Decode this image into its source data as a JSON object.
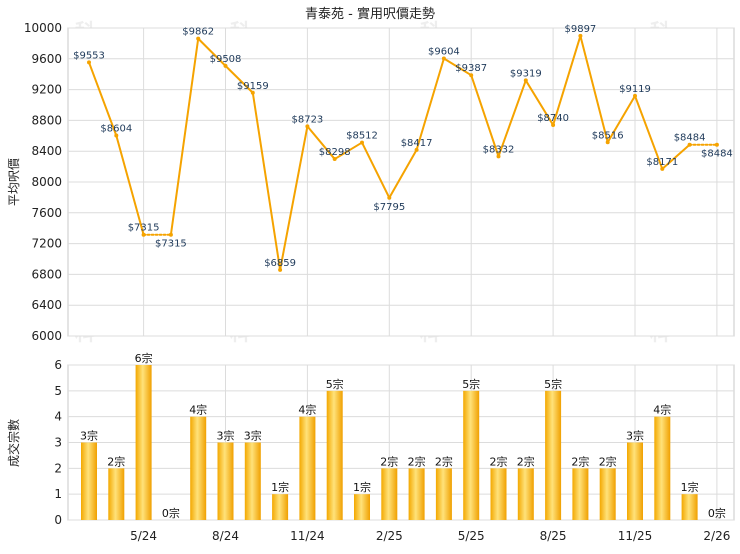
{
  "chart_data": [
    {
      "type": "line",
      "title": "青泰苑 - 實用呎價走勢",
      "ylabel": "平均呎價",
      "ylim": [
        6000,
        10000
      ],
      "yticks": [
        6000,
        6400,
        6800,
        7200,
        7600,
        8000,
        8400,
        8800,
        9200,
        9600,
        10000
      ],
      "xticks": [
        "5/24",
        "8/24",
        "11/24",
        "2/25",
        "5/25",
        "8/25",
        "11/25",
        "2/26"
      ],
      "series": [
        {
          "color": "#f5a300",
          "values": [
            9553,
            8604,
            7315,
            7315,
            9862,
            9508,
            9159,
            6859,
            8723,
            8298,
            8512,
            7795,
            8417,
            9604,
            9387,
            8332,
            9319,
            8740,
            9897,
            8516,
            9119,
            8171,
            8484,
            8484
          ],
          "labels": [
            "$9553",
            "$8604",
            "$7315",
            "$7315",
            "$9862",
            "$9508",
            "$9159",
            "$6859",
            "$8723",
            "$8298",
            "$8512",
            "$7795",
            "$8417",
            "$9604",
            "$9387",
            "$8332",
            "$9319",
            "$8740",
            "$9897",
            "$8516",
            "$9119",
            "$8171",
            "$8484",
            "$8484"
          ],
          "estimated": [
            false,
            false,
            false,
            true,
            false,
            false,
            false,
            false,
            false,
            false,
            false,
            false,
            false,
            false,
            false,
            false,
            false,
            false,
            false,
            false,
            false,
            false,
            false,
            true
          ]
        }
      ],
      "grid": true
    },
    {
      "type": "bar",
      "ylabel": "成交宗數",
      "ylim": [
        0,
        6
      ],
      "yticks": [
        0,
        1,
        2,
        3,
        4,
        5,
        6
      ],
      "xticks": [
        "5/24",
        "8/24",
        "11/24",
        "2/25",
        "5/25",
        "8/25",
        "11/25",
        "2/26"
      ],
      "values": [
        3,
        2,
        6,
        0,
        4,
        3,
        3,
        1,
        4,
        5,
        1,
        2,
        2,
        2,
        5,
        2,
        2,
        5,
        2,
        2,
        3,
        4,
        1,
        0
      ],
      "labels": [
        "3宗",
        "2宗",
        "6宗",
        "0宗",
        "4宗",
        "3宗",
        "3宗",
        "1宗",
        "4宗",
        "5宗",
        "1宗",
        "2宗",
        "2宗",
        "2宗",
        "5宗",
        "2宗",
        "2宗",
        "5宗",
        "2宗",
        "2宗",
        "3宗",
        "4宗",
        "1宗",
        "0宗"
      ],
      "color": "#f7b500",
      "grid": true
    }
  ],
  "watermark": "科一"
}
